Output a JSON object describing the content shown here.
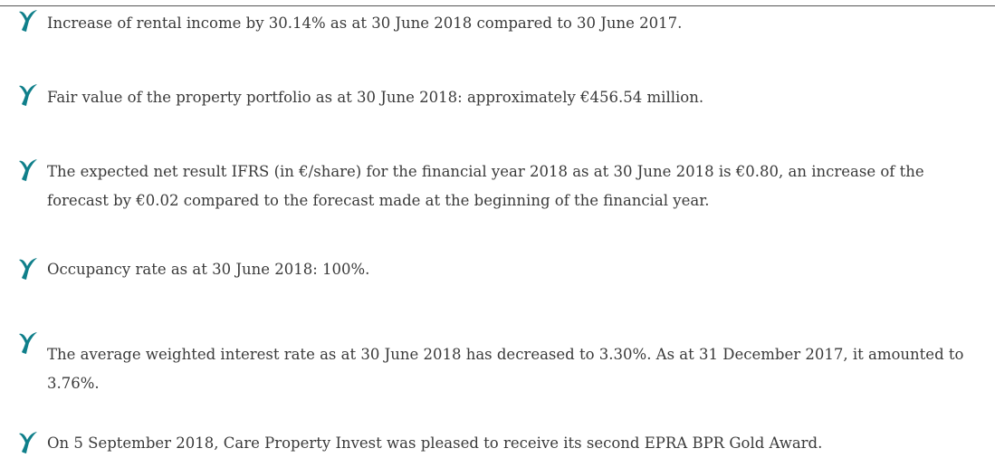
{
  "items": [
    "Increase of rental income by 30.14% as at 30 June 2018 compared to 30 June 2017.",
    "Fair value of the property portfolio as at 30 June 2018: approximately €456.54 million.",
    "The expected net result IFRS (in €/share) for the financial year 2018 as at 30 June 2018 is €0.80, an increase of the forecast by €0.02 compared to the forecast made at the beginning of the financial year.",
    "Occupancy rate as at 30 June 2018: 100%.",
    "The average weighted interest rate as at 30 June 2018 has decreased to 3.30%. As at 31 December 2017, it amounted to 3.76%.",
    "On 5 September 2018, Care Property Invest was pleased to receive its second EPRA BPR Gold Award."
  ]
}
